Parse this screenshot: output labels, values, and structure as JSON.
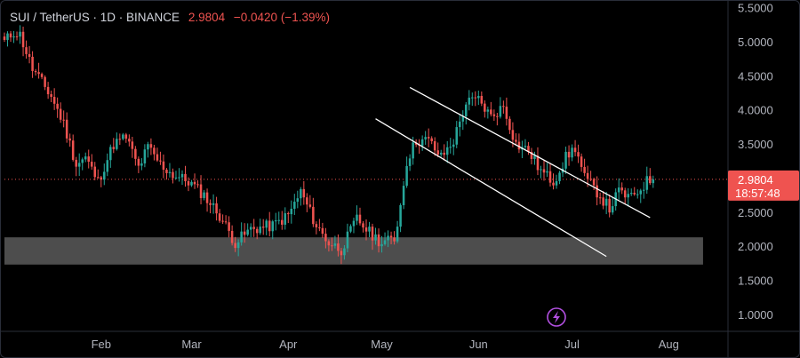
{
  "header": {
    "symbol": "SUI / TetherUS · 1D · BINANCE",
    "last": "2.9804",
    "change": "−0.0420 (−1.39%)"
  },
  "price_badge": {
    "price": "2.9804",
    "countdown": "18:57:48"
  },
  "flash_icon": "lightning-icon",
  "colors": {
    "up": "#26a69a",
    "down": "#ef5350",
    "zone": "#5a5a5a",
    "lines": "#ffffff",
    "accent": "#b14fe0"
  },
  "chart_data": {
    "type": "candlestick",
    "title": "SUI / TetherUS · 1D · BINANCE",
    "xlabel": "",
    "ylabel": "",
    "y_ticks": [
      "5.5000",
      "5.0000",
      "4.5000",
      "4.0000",
      "3.5000",
      "3.0000",
      "2.5000",
      "2.0000",
      "1.5000",
      "1.0000"
    ],
    "x_ticks": [
      "Feb",
      "Mar",
      "Apr",
      "May",
      "Jun",
      "Jul",
      "Aug"
    ],
    "ylim": [
      0.75,
      5.6
    ],
    "xlim": [
      "2024-01-01",
      "2024-08-20"
    ],
    "current_price": 2.9804,
    "support_zone": {
      "from": "2024-01-01",
      "to": "2024-08-12",
      "low": 1.73,
      "high": 2.13
    },
    "trendlines": [
      {
        "from": [
          "2024-05-10",
          4.33
        ],
        "to": [
          "2024-07-26",
          2.42
        ]
      },
      {
        "from": [
          "2024-04-29",
          3.87
        ],
        "to": [
          "2024-07-12",
          1.85
        ]
      }
    ],
    "anchors": [
      [
        "2024-01-01",
        5.0
      ],
      [
        "2024-01-04",
        5.15
      ],
      [
        "2024-01-06",
        5.1
      ],
      [
        "2024-01-10",
        4.6
      ],
      [
        "2024-01-16",
        4.2
      ],
      [
        "2024-01-20",
        3.8
      ],
      [
        "2024-01-24",
        3.2
      ],
      [
        "2024-01-27",
        3.3
      ],
      [
        "2024-01-31",
        2.95
      ],
      [
        "2024-02-05",
        3.5
      ],
      [
        "2024-02-09",
        3.6
      ],
      [
        "2024-02-13",
        3.15
      ],
      [
        "2024-02-16",
        3.45
      ],
      [
        "2024-02-20",
        3.2
      ],
      [
        "2024-02-24",
        3.05
      ],
      [
        "2024-02-29",
        2.95
      ],
      [
        "2024-03-05",
        2.75
      ],
      [
        "2024-03-10",
        2.45
      ],
      [
        "2024-03-15",
        2.05
      ],
      [
        "2024-03-20",
        2.25
      ],
      [
        "2024-03-27",
        2.3
      ],
      [
        "2024-04-01",
        2.45
      ],
      [
        "2024-04-05",
        2.8
      ],
      [
        "2024-04-10",
        2.3
      ],
      [
        "2024-04-14",
        2.05
      ],
      [
        "2024-04-18",
        1.95
      ],
      [
        "2024-04-23",
        2.4
      ],
      [
        "2024-04-27",
        2.2
      ],
      [
        "2024-05-01",
        2.05
      ],
      [
        "2024-05-05",
        2.1
      ],
      [
        "2024-05-07",
        2.6
      ],
      [
        "2024-05-09",
        3.25
      ],
      [
        "2024-05-12",
        3.55
      ],
      [
        "2024-05-16",
        3.55
      ],
      [
        "2024-05-20",
        3.3
      ],
      [
        "2024-05-24",
        3.55
      ],
      [
        "2024-05-28",
        4.1
      ],
      [
        "2024-06-01",
        4.15
      ],
      [
        "2024-06-05",
        3.9
      ],
      [
        "2024-06-09",
        4.05
      ],
      [
        "2024-06-13",
        3.5
      ],
      [
        "2024-06-17",
        3.4
      ],
      [
        "2024-06-21",
        3.1
      ],
      [
        "2024-06-25",
        2.95
      ],
      [
        "2024-06-29",
        3.3
      ],
      [
        "2024-07-02",
        3.45
      ],
      [
        "2024-07-05",
        3.0
      ],
      [
        "2024-07-09",
        2.8
      ],
      [
        "2024-07-13",
        2.55
      ],
      [
        "2024-07-16",
        2.8
      ],
      [
        "2024-07-20",
        2.7
      ],
      [
        "2024-07-23",
        2.85
      ],
      [
        "2024-07-25",
        2.95
      ],
      [
        "2024-07-27",
        3.0
      ]
    ]
  }
}
